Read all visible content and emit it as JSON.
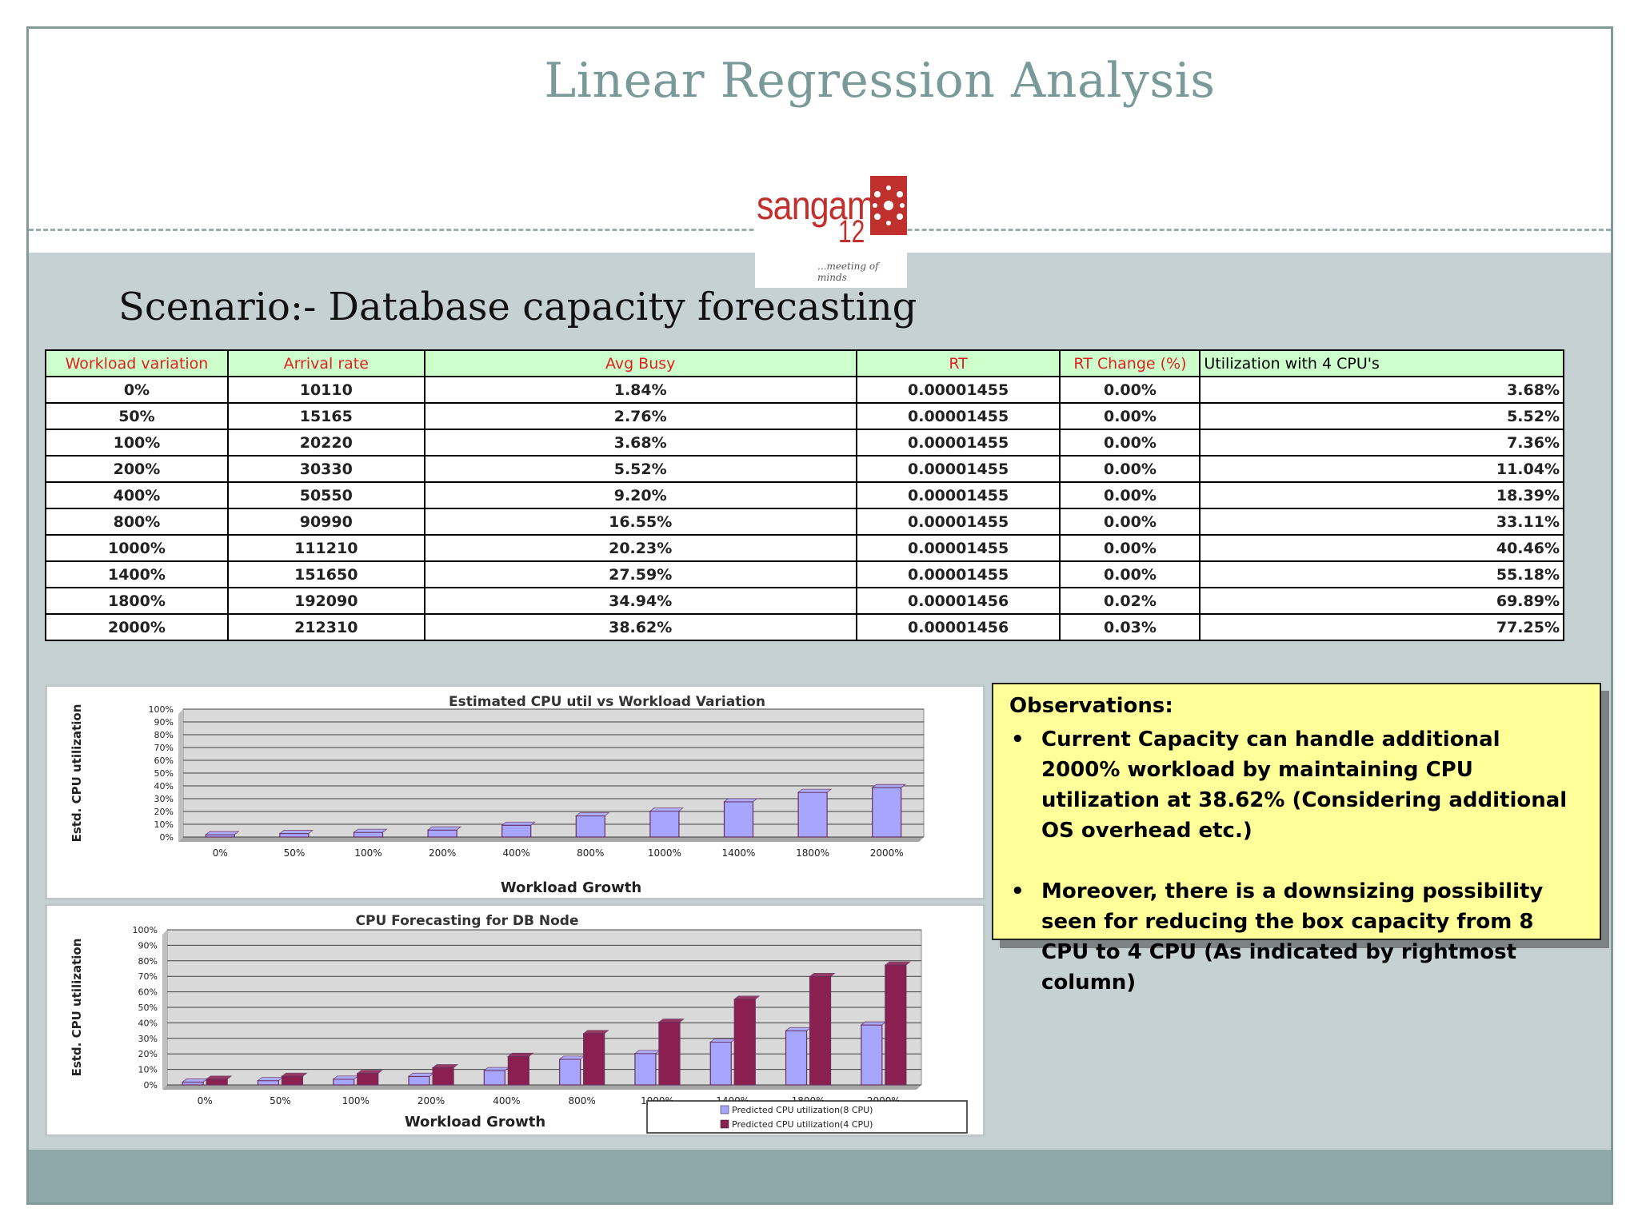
{
  "slide_title": "Linear Regression Analysis",
  "logo": {
    "word": "sangam",
    "number": "12",
    "tagline": "...meeting of minds"
  },
  "scenario": "Scenario:- Database capacity forecasting",
  "table": {
    "headers": [
      "Workload variation",
      "Arrival rate",
      "Avg Busy",
      "RT",
      "RT Change (%)",
      "Utilization with 4 CPU's"
    ],
    "rows": [
      [
        "0%",
        "10110",
        "1.84%",
        "0.00001455",
        "0.00%",
        "3.68%"
      ],
      [
        "50%",
        "15165",
        "2.76%",
        "0.00001455",
        "0.00%",
        "5.52%"
      ],
      [
        "100%",
        "20220",
        "3.68%",
        "0.00001455",
        "0.00%",
        "7.36%"
      ],
      [
        "200%",
        "30330",
        "5.52%",
        "0.00001455",
        "0.00%",
        "11.04%"
      ],
      [
        "400%",
        "50550",
        "9.20%",
        "0.00001455",
        "0.00%",
        "18.39%"
      ],
      [
        "800%",
        "90990",
        "16.55%",
        "0.00001455",
        "0.00%",
        "33.11%"
      ],
      [
        "1000%",
        "111210",
        "20.23%",
        "0.00001455",
        "0.00%",
        "40.46%"
      ],
      [
        "1400%",
        "151650",
        "27.59%",
        "0.00001455",
        "0.00%",
        "55.18%"
      ],
      [
        "1800%",
        "192090",
        "34.94%",
        "0.00001456",
        "0.02%",
        "69.89%"
      ],
      [
        "2000%",
        "212310",
        "38.62%",
        "0.00001456",
        "0.03%",
        "77.25%"
      ]
    ]
  },
  "chart_data": [
    {
      "type": "bar",
      "title": "Estimated CPU util vs Workload Variation",
      "xlabel": "Workload Growth",
      "ylabel": "Estd. CPU utilization",
      "categories": [
        "0%",
        "50%",
        "100%",
        "200%",
        "400%",
        "800%",
        "1000%",
        "1400%",
        "1800%",
        "2000%"
      ],
      "y_ticks": [
        "100%",
        "90%",
        "80%",
        "70%",
        "60%",
        "50%",
        "40%",
        "30%",
        "20%",
        "10%",
        "0%"
      ],
      "ylim": [
        0,
        100
      ],
      "values": [
        1.84,
        2.76,
        3.68,
        5.52,
        9.2,
        16.55,
        20.23,
        27.59,
        34.94,
        38.62
      ],
      "color": "#a6a6ff",
      "grid": true,
      "legend": "none"
    },
    {
      "type": "bar",
      "title": "CPU Forecasting for DB Node",
      "xlabel": "Workload Growth",
      "ylabel": "Estd. CPU utilization",
      "categories": [
        "0%",
        "50%",
        "100%",
        "200%",
        "400%",
        "800%",
        "1000%",
        "1400%",
        "1800%",
        "2000%"
      ],
      "y_ticks": [
        "100%",
        "90%",
        "80%",
        "70%",
        "60%",
        "50%",
        "40%",
        "30%",
        "20%",
        "10%",
        "0%"
      ],
      "ylim": [
        0,
        100
      ],
      "series": [
        {
          "name": "Predicted CPU utilization(8 CPU)",
          "values": [
            1.84,
            2.76,
            3.68,
            5.52,
            9.2,
            16.55,
            20.23,
            27.59,
            34.94,
            38.62
          ],
          "color": "#a6a6ff"
        },
        {
          "name": "Predicted CPU utilization(4 CPU)",
          "values": [
            3.68,
            5.52,
            7.36,
            11.04,
            18.39,
            33.11,
            40.46,
            55.18,
            69.89,
            77.25
          ],
          "color": "#8b1f4f"
        }
      ],
      "grid": true,
      "legend": "bottom-right"
    }
  ],
  "observations": {
    "heading": "Observations:",
    "items": [
      "Current Capacity can handle additional 2000% workload by maintaining CPU utilization at 38.62% (Considering additional OS overhead etc.)",
      "Moreover, there is a downsizing possibility seen for reducing the box capacity from 8 CPU to 4 CPU (As indicated by rightmost column)"
    ]
  }
}
